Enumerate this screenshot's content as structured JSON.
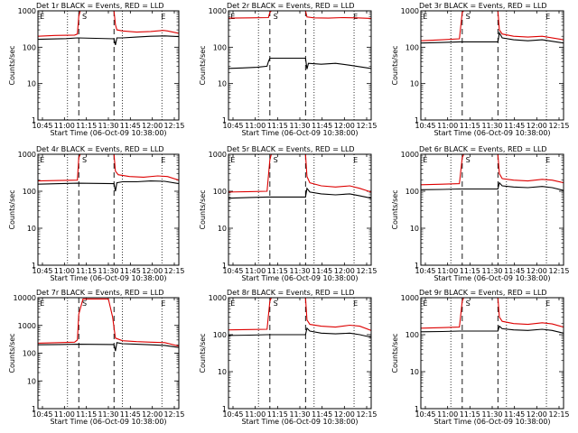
{
  "colors": {
    "events": "#000000",
    "lld": "#dd0000",
    "axis": "#000000"
  },
  "chart_data": [
    {
      "type": "line",
      "title": "Det 1r BLACK = Events, RED = LLD",
      "xlabel": "Start Time (06-Oct-09 10:38:00)",
      "ylabel": "Counts/sec",
      "yscale": "log",
      "ylim": [
        1,
        1000
      ],
      "yticks": [
        "1",
        "10",
        "100",
        "1000"
      ],
      "xlim": [
        0,
        100
      ],
      "xticks": [
        "10:45",
        "11:00",
        "11:15",
        "11:30",
        "11:45",
        "12:00",
        "12:15"
      ],
      "markers": {
        "dotted": [
          21,
          60,
          88
        ],
        "dashed": [
          29,
          54
        ],
        "labels": [
          {
            "text": "E",
            "x": 3
          },
          {
            "text": "S",
            "x": 33
          },
          {
            "text": "E",
            "x": 89
          }
        ]
      },
      "series": [
        {
          "color": "red",
          "x": [
            0,
            12,
            26,
            28,
            29,
            30,
            54,
            55,
            56,
            60,
            70,
            80,
            89,
            92,
            100
          ],
          "y": [
            200,
            210,
            215,
            230,
            700,
            1000,
            1000,
            420,
            300,
            280,
            260,
            270,
            290,
            280,
            240
          ]
        },
        {
          "color": "black",
          "x": [
            0,
            10,
            20,
            28,
            54,
            55,
            56,
            60,
            70,
            80,
            90,
            100
          ],
          "y": [
            165,
            168,
            172,
            180,
            170,
            115,
            180,
            180,
            190,
            200,
            205,
            195
          ]
        }
      ]
    },
    {
      "type": "line",
      "title": "Det 2r BLACK = Events, RED = LLD",
      "xlabel": "Start Time (06-Oct-09 10:38:00)",
      "ylabel": "Counts/sec",
      "yscale": "log",
      "ylim": [
        1,
        1000
      ],
      "yticks": [
        "1",
        "10",
        "100",
        "1000"
      ],
      "xlim": [
        0,
        100
      ],
      "xticks": [
        "10:45",
        "11:00",
        "11:15",
        "11:30",
        "11:45",
        "12:00",
        "12:15"
      ],
      "markers": {
        "dotted": [
          21,
          60,
          88
        ],
        "dashed": [
          29,
          54
        ],
        "labels": [
          {
            "text": "E",
            "x": 3
          },
          {
            "text": "S",
            "x": 33
          },
          {
            "text": "E",
            "x": 89
          }
        ]
      },
      "series": [
        {
          "color": "red",
          "x": [
            0,
            15,
            28,
            29,
            30,
            54,
            55,
            60,
            70,
            80,
            90,
            100
          ],
          "y": [
            630,
            640,
            650,
            900,
            1000,
            1000,
            680,
            640,
            630,
            650,
            640,
            620
          ]
        },
        {
          "color": "black",
          "x": [
            0,
            10,
            20,
            27,
            28,
            29,
            54,
            55,
            56,
            65,
            75,
            85,
            100
          ],
          "y": [
            26,
            27,
            28,
            30,
            40,
            50,
            50,
            25,
            36,
            34,
            36,
            32,
            26
          ]
        }
      ]
    },
    {
      "type": "line",
      "title": "Det 3r BLACK = Events, RED = LLD",
      "xlabel": "Start Time (06-Oct-09 10:38:00)",
      "ylabel": "Counts/sec",
      "yscale": "log",
      "ylim": [
        1,
        1000
      ],
      "yticks": [
        "1",
        "10",
        "100",
        "1000"
      ],
      "xlim": [
        0,
        100
      ],
      "xticks": [
        "10:45",
        "11:00",
        "11:15",
        "11:30",
        "11:45",
        "12:00",
        "12:15"
      ],
      "markers": {
        "dotted": [
          21,
          60,
          88
        ],
        "dashed": [
          29,
          54
        ],
        "labels": [
          {
            "text": "E",
            "x": 3
          },
          {
            "text": "S",
            "x": 33
          },
          {
            "text": "E",
            "x": 89
          }
        ]
      },
      "series": [
        {
          "color": "red",
          "x": [
            0,
            15,
            27,
            29,
            30,
            54,
            55,
            57,
            65,
            75,
            85,
            100
          ],
          "y": [
            150,
            160,
            170,
            900,
            1000,
            1000,
            300,
            230,
            200,
            190,
            200,
            160
          ]
        },
        {
          "color": "black",
          "x": [
            0,
            15,
            27,
            54,
            55,
            57,
            65,
            75,
            85,
            100
          ],
          "y": [
            130,
            135,
            140,
            140,
            250,
            180,
            160,
            150,
            160,
            130
          ]
        }
      ]
    },
    {
      "type": "line",
      "title": "Det 4r BLACK = Events, RED = LLD",
      "xlabel": "Start Time (06-Oct-09 10:38:00)",
      "ylabel": "Counts/sec",
      "yscale": "log",
      "ylim": [
        1,
        1000
      ],
      "yticks": [
        "1",
        "10",
        "100",
        "1000"
      ],
      "xlim": [
        0,
        100
      ],
      "xticks": [
        "10:45",
        "11:00",
        "11:15",
        "11:30",
        "11:45",
        "12:00",
        "12:15"
      ],
      "markers": {
        "dotted": [
          21,
          60,
          88
        ],
        "dashed": [
          29,
          54
        ],
        "labels": [
          {
            "text": "E",
            "x": 3
          },
          {
            "text": "S",
            "x": 33
          },
          {
            "text": "E",
            "x": 89
          }
        ]
      },
      "series": [
        {
          "color": "red",
          "x": [
            0,
            15,
            28,
            29,
            30,
            54,
            55,
            57,
            65,
            75,
            85,
            92,
            100
          ],
          "y": [
            190,
            195,
            200,
            800,
            1000,
            1000,
            350,
            280,
            250,
            240,
            260,
            250,
            200
          ]
        },
        {
          "color": "black",
          "x": [
            0,
            15,
            28,
            54,
            55,
            56,
            60,
            70,
            80,
            90,
            100
          ],
          "y": [
            155,
            160,
            165,
            160,
            100,
            170,
            180,
            180,
            190,
            185,
            160
          ]
        }
      ]
    },
    {
      "type": "line",
      "title": "Det 5r BLACK = Events, RED = LLD",
      "xlabel": "Start Time (06-Oct-09 10:38:00)",
      "ylabel": "Counts/sec",
      "yscale": "log",
      "ylim": [
        1,
        1000
      ],
      "yticks": [
        "1",
        "10",
        "100",
        "1000"
      ],
      "xlim": [
        0,
        100
      ],
      "xticks": [
        "10:45",
        "11:00",
        "11:15",
        "11:30",
        "11:45",
        "12:00",
        "12:15"
      ],
      "markers": {
        "dotted": [
          21,
          60,
          88
        ],
        "dashed": [
          29,
          54
        ],
        "labels": [
          {
            "text": "E",
            "x": 3
          },
          {
            "text": "S",
            "x": 33
          },
          {
            "text": "E",
            "x": 89
          }
        ]
      },
      "series": [
        {
          "color": "red",
          "x": [
            0,
            15,
            27,
            29,
            30,
            54,
            55,
            57,
            65,
            75,
            85,
            92,
            100
          ],
          "y": [
            95,
            98,
            100,
            700,
            1000,
            1000,
            250,
            170,
            140,
            130,
            140,
            120,
            95
          ]
        },
        {
          "color": "black",
          "x": [
            0,
            15,
            27,
            54,
            55,
            57,
            65,
            75,
            85,
            92,
            100
          ],
          "y": [
            65,
            68,
            70,
            70,
            120,
            95,
            85,
            80,
            85,
            75,
            65
          ]
        }
      ]
    },
    {
      "type": "line",
      "title": "Det 6r BLACK = Events, RED = LLD",
      "xlabel": "Start Time (06-Oct-09 10:38:00)",
      "ylabel": "Counts/sec",
      "yscale": "log",
      "ylim": [
        1,
        1000
      ],
      "yticks": [
        "1",
        "10",
        "100",
        "1000"
      ],
      "xlim": [
        0,
        100
      ],
      "xticks": [
        "10:45",
        "11:00",
        "11:15",
        "11:30",
        "11:45",
        "12:00",
        "12:15"
      ],
      "markers": {
        "dotted": [
          21,
          60,
          88
        ],
        "dashed": [
          29,
          54
        ],
        "labels": [
          {
            "text": "E",
            "x": 3
          },
          {
            "text": "S",
            "x": 33
          },
          {
            "text": "E",
            "x": 89
          }
        ]
      },
      "series": [
        {
          "color": "red",
          "x": [
            0,
            15,
            27,
            29,
            30,
            54,
            55,
            57,
            65,
            75,
            85,
            92,
            100
          ],
          "y": [
            150,
            155,
            160,
            800,
            1000,
            1000,
            300,
            220,
            200,
            190,
            210,
            200,
            170
          ]
        },
        {
          "color": "black",
          "x": [
            0,
            15,
            27,
            54,
            55,
            57,
            65,
            75,
            85,
            92,
            100
          ],
          "y": [
            110,
            112,
            115,
            115,
            170,
            140,
            130,
            125,
            135,
            125,
            105
          ]
        }
      ]
    },
    {
      "type": "line",
      "title": "Det 7r BLACK = Events, RED = LLD",
      "xlabel": "Start Time (06-Oct-09 10:38:00)",
      "ylabel": "Counts/sec",
      "yscale": "log",
      "ylim": [
        1,
        10000
      ],
      "yticks": [
        "1",
        "10",
        "100",
        "1000",
        "10000"
      ],
      "xlim": [
        0,
        100
      ],
      "xticks": [
        "10:45",
        "11:00",
        "11:15",
        "11:30",
        "11:45",
        "12:00",
        "12:15"
      ],
      "markers": {
        "dotted": [
          21,
          60,
          88
        ],
        "dashed": [
          29,
          54
        ],
        "labels": [
          {
            "text": "E",
            "x": 3
          },
          {
            "text": "S",
            "x": 33
          },
          {
            "text": "E",
            "x": 89
          }
        ]
      },
      "series": [
        {
          "color": "red",
          "x": [
            0,
            15,
            26,
            28,
            29,
            32,
            50,
            53,
            55,
            60,
            70,
            80,
            90,
            100
          ],
          "y": [
            230,
            240,
            250,
            300,
            2500,
            9000,
            9000,
            2000,
            350,
            280,
            260,
            250,
            240,
            180
          ]
        },
        {
          "color": "black",
          "x": [
            0,
            15,
            28,
            54,
            55,
            56,
            60,
            70,
            80,
            90,
            100
          ],
          "y": [
            200,
            205,
            210,
            205,
            120,
            240,
            220,
            210,
            200,
            190,
            160
          ]
        }
      ]
    },
    {
      "type": "line",
      "title": "Det 8r BLACK = Events, RED = LLD",
      "xlabel": "Start Time (06-Oct-09 10:38:00)",
      "ylabel": "Counts/sec",
      "yscale": "log",
      "ylim": [
        1,
        1000
      ],
      "yticks": [
        "1",
        "10",
        "100",
        "1000"
      ],
      "xlim": [
        0,
        100
      ],
      "xticks": [
        "10:45",
        "11:00",
        "11:15",
        "11:30",
        "11:45",
        "12:00",
        "12:15"
      ],
      "markers": {
        "dotted": [
          21,
          60,
          88
        ],
        "dashed": [
          29,
          54
        ],
        "labels": [
          {
            "text": "E",
            "x": 3
          },
          {
            "text": "S",
            "x": 33
          },
          {
            "text": "E",
            "x": 89
          }
        ]
      },
      "series": [
        {
          "color": "red",
          "x": [
            0,
            15,
            27,
            29,
            30,
            54,
            55,
            57,
            65,
            75,
            85,
            92,
            100
          ],
          "y": [
            135,
            138,
            140,
            800,
            1000,
            1000,
            250,
            190,
            170,
            160,
            180,
            170,
            130
          ]
        },
        {
          "color": "black",
          "x": [
            0,
            15,
            27,
            54,
            55,
            57,
            65,
            75,
            85,
            92,
            100
          ],
          "y": [
            95,
            97,
            100,
            100,
            150,
            125,
            110,
            105,
            110,
            100,
            85
          ]
        }
      ]
    },
    {
      "type": "line",
      "title": "Det 9r BLACK = Events, RED = LLD",
      "xlabel": "Start Time (06-Oct-09 10:38:00)",
      "ylabel": "Counts/sec",
      "yscale": "log",
      "ylim": [
        1,
        1000
      ],
      "yticks": [
        "1",
        "10",
        "100",
        "1000"
      ],
      "xlim": [
        0,
        100
      ],
      "xticks": [
        "10:45",
        "11:00",
        "11:15",
        "11:30",
        "11:45",
        "12:00",
        "12:15"
      ],
      "markers": {
        "dotted": [
          21,
          60,
          88
        ],
        "dashed": [
          29,
          54
        ],
        "labels": [
          {
            "text": "E",
            "x": 3
          },
          {
            "text": "S",
            "x": 33
          },
          {
            "text": "E",
            "x": 89
          }
        ]
      },
      "series": [
        {
          "color": "red",
          "x": [
            0,
            15,
            27,
            29,
            30,
            54,
            55,
            57,
            65,
            75,
            85,
            92,
            100
          ],
          "y": [
            150,
            155,
            160,
            800,
            1000,
            1000,
            300,
            230,
            200,
            190,
            210,
            195,
            160
          ]
        },
        {
          "color": "black",
          "x": [
            0,
            15,
            27,
            54,
            55,
            57,
            65,
            75,
            85,
            92,
            100
          ],
          "y": [
            120,
            122,
            125,
            125,
            170,
            145,
            135,
            130,
            140,
            130,
            110
          ]
        }
      ]
    }
  ]
}
